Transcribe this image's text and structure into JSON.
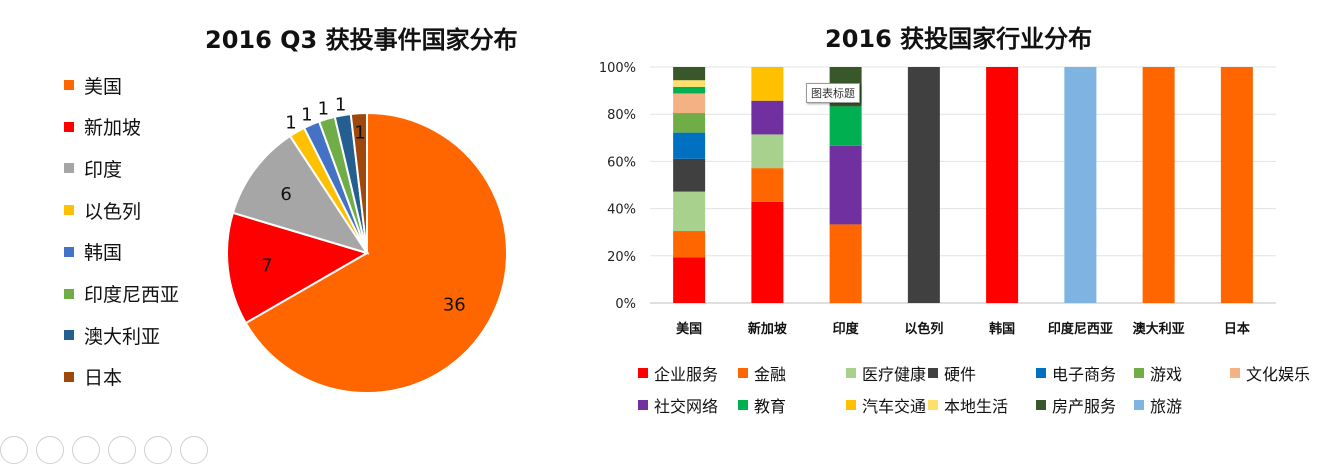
{
  "chart_data": [
    {
      "type": "pie",
      "title": "2016 Q3 获投事件国家分布",
      "categories": [
        "美国",
        "新加坡",
        "印度",
        "以色列",
        "韩国",
        "印度尼西亚",
        "澳大利亚",
        "日本"
      ],
      "values": [
        36,
        7,
        6,
        1,
        1,
        1,
        1,
        1
      ],
      "colors": [
        "#FF6600",
        "#FF0000",
        "#A6A6A6",
        "#FFC000",
        "#4472C4",
        "#70AD47",
        "#255E91",
        "#9E480E"
      ],
      "legend_position": "left"
    },
    {
      "type": "bar",
      "stacked": "percent",
      "title": "2016 获投国家行业分布",
      "categories": [
        "美国",
        "新加坡",
        "印度",
        "以色列",
        "韩国",
        "印度尼西亚",
        "澳大利亚",
        "日本"
      ],
      "y_ticks": [
        "0%",
        "20%",
        "40%",
        "60%",
        "80%",
        "100%"
      ],
      "ylim": [
        0,
        100
      ],
      "grid": true,
      "legend_position": "bottom",
      "series": [
        {
          "name": "企业服务",
          "color": "#FF0000",
          "values": [
            19.4,
            42.9,
            0,
            0,
            100,
            0,
            0,
            0
          ]
        },
        {
          "name": "金融",
          "color": "#FF6600",
          "values": [
            11.1,
            14.3,
            33.3,
            0,
            0,
            0,
            100,
            100
          ]
        },
        {
          "name": "医疗健康",
          "color": "#A9D18E",
          "values": [
            16.7,
            14.3,
            0,
            0,
            0,
            0,
            0,
            0
          ]
        },
        {
          "name": "硬件",
          "color": "#404040",
          "values": [
            13.9,
            0,
            0,
            100,
            0,
            0,
            0,
            0
          ]
        },
        {
          "name": "电子商务",
          "color": "#0070C0",
          "values": [
            11.1,
            0,
            0,
            0,
            0,
            0,
            0,
            0
          ]
        },
        {
          "name": "游戏",
          "color": "#70AD47",
          "values": [
            8.3,
            0,
            0,
            0,
            0,
            0,
            0,
            0
          ]
        },
        {
          "name": "文化娱乐",
          "color": "#F4B183",
          "values": [
            8.3,
            0,
            0,
            0,
            0,
            0,
            0,
            0
          ]
        },
        {
          "name": "社交网络",
          "color": "#7030A0",
          "values": [
            0,
            14.3,
            33.3,
            0,
            0,
            0,
            0,
            0
          ]
        },
        {
          "name": "教育",
          "color": "#00B050",
          "values": [
            2.8,
            0,
            16.7,
            0,
            0,
            0,
            0,
            0
          ]
        },
        {
          "name": "汽车交通",
          "color": "#FFC000",
          "values": [
            0,
            14.3,
            0,
            0,
            0,
            0,
            0,
            0
          ]
        },
        {
          "name": "本地生活",
          "color": "#FFE066",
          "values": [
            2.8,
            0,
            0,
            0,
            0,
            0,
            0,
            0
          ]
        },
        {
          "name": "房产服务",
          "color": "#38572A",
          "values": [
            5.6,
            0,
            16.7,
            0,
            0,
            0,
            0,
            0
          ]
        },
        {
          "name": "旅游",
          "color": "#7EB3E2",
          "values": [
            0,
            0,
            0,
            0,
            0,
            100,
            0,
            0
          ]
        }
      ]
    }
  ],
  "tooltip": {
    "text": "图表标题"
  }
}
